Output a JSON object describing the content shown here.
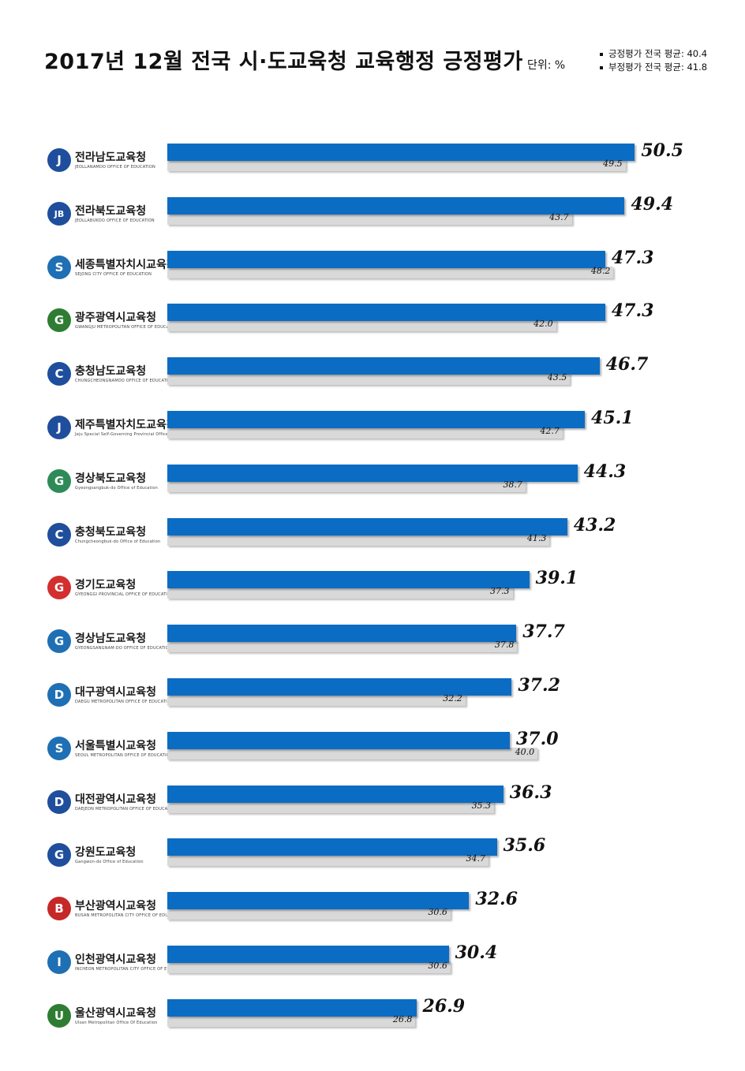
{
  "header": {
    "title": "2017년 12월 전국 시·도교육청 교육행정 긍정평가",
    "unit": "단위: %",
    "legend_positive": "긍정평가 전국 평균: 40.4",
    "legend_negative": "부정평가 전국 평균: 41.8"
  },
  "colors": {
    "positive_bar": "#0b6cc4",
    "negative_bar": "#d9d9d9"
  },
  "chart_data": {
    "type": "bar",
    "orientation": "horizontal",
    "title": "2017년 12월 전국 시·도교육청 교육행정 긍정평가",
    "unit": "단위: %",
    "categories": [
      "전라남도교육청",
      "전라북도교육청",
      "세종특별자치시교육청",
      "광주광역시교육청",
      "충청남도교육청",
      "제주특별자치도교육청",
      "경상북도교육청",
      "충청북도교육청",
      "경기도교육청",
      "경상남도교육청",
      "대구광역시교육청",
      "서울특별시교육청",
      "대전광역시교육청",
      "강원도교육청",
      "부산광역시교육청",
      "인천광역시교육청",
      "울산광역시교육청"
    ],
    "category_subtitles": [
      "JEOLLANAMDO OFFICE OF EDUCATION",
      "JEOLLABUKDO OFFICE OF EDUCATION",
      "SEJONG CITY OFFICE OF EDUCATION",
      "GWANGJU METROPOLITAN OFFICE OF EDUCATION",
      "CHUNGCHEONGNAMDO OFFICE OF EDUCATION",
      "Jeju Special Self-Governing Provincial Office of Education",
      "Gyeongsangbuk-do Office of Education",
      "Chungcheongbuk-do Office of Education",
      "GYEONGGI PROVINCIAL OFFICE OF EDUCATION",
      "GYEONGSANGNAM-DO OFFICE OF EDUCATION",
      "DAEGU METROPOLITAN OFFICE OF EDUCATION",
      "SEOUL METROPOLITAN OFFICE OF EDUCATION",
      "DAEJEON METROPOLITAN OFFICE OF EDUCATION",
      "Gangwon-do Office of Education",
      "BUSAN METROPOLITAN CITY OFFICE OF EDUCATION",
      "INCHEON METROPOLITAN CITY OFFICE OF EDUCATION",
      "Ulsan Metropolitan Office Of Education"
    ],
    "logo_marks": [
      "J",
      "JB",
      "S",
      "G",
      "C",
      "J",
      "G",
      "C",
      "G",
      "G",
      "D",
      "S",
      "D",
      "G",
      "B",
      "I",
      "U"
    ],
    "logo_colors": [
      "#1f4e9c",
      "#1f4e9c",
      "#1f6fb5",
      "#2e7d32",
      "#1f4e9c",
      "#1f4e9c",
      "#2e8b57",
      "#1f4e9c",
      "#d32f2f",
      "#1f6fb5",
      "#1f6fb5",
      "#1f6fb5",
      "#1f4e9c",
      "#1f4e9c",
      "#c62828",
      "#1f6fb5",
      "#2e7d32"
    ],
    "series": [
      {
        "values": [
          50.5,
          49.4,
          47.3,
          47.3,
          46.7,
          45.1,
          44.3,
          43.2,
          39.1,
          37.7,
          37.2,
          37.0,
          36.3,
          35.6,
          32.6,
          30.4,
          26.9
        ]
      },
      {
        "values": [
          49.5,
          43.7,
          48.2,
          42.0,
          43.5,
          42.7,
          38.7,
          41.3,
          37.3,
          37.8,
          32.2,
          40.0,
          35.3,
          34.7,
          30.6,
          30.6,
          26.8
        ]
      }
    ],
    "xlim": [
      0,
      52
    ],
    "grid": false
  }
}
